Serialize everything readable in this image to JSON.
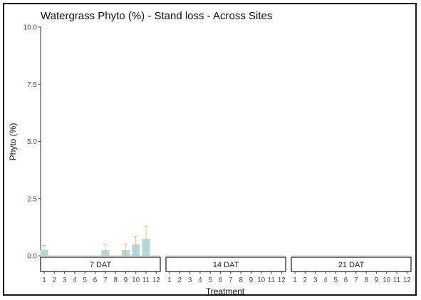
{
  "chart_data": {
    "type": "bar",
    "title": "Watergrass Phyto (%) - Stand loss - Across Sites",
    "xlabel": "Treatment",
    "ylabel": "Phyto (%)",
    "ylim": [
      0,
      10
    ],
    "yticks": [
      "0.0",
      "2.5",
      "5.0",
      "7.5",
      "10.0"
    ],
    "categories": [
      "1",
      "2",
      "3",
      "4",
      "5",
      "6",
      "7",
      "8",
      "9",
      "10",
      "11",
      "12"
    ],
    "bar_color": "#add8e6",
    "error_color": "#f0c060",
    "panels": [
      {
        "label": "7 DAT",
        "values": [
          0.25,
          0,
          0,
          0,
          0,
          0,
          0.25,
          0,
          0.25,
          0.5,
          0.75,
          0
        ],
        "error": [
          0.2,
          0,
          0,
          0,
          0,
          0,
          0.25,
          0,
          0.25,
          0.35,
          0.55,
          0
        ]
      },
      {
        "label": "14 DAT",
        "values": [
          0,
          0,
          0,
          0,
          0,
          0,
          0,
          0,
          0,
          0,
          0,
          0
        ],
        "error": [
          0,
          0,
          0,
          0,
          0,
          0,
          0,
          0,
          0,
          0,
          0,
          0
        ]
      },
      {
        "label": "21 DAT",
        "values": [
          0,
          0,
          0,
          0,
          0,
          0,
          0,
          0,
          0,
          0,
          0,
          0
        ],
        "error": [
          0,
          0,
          0,
          0,
          0,
          0,
          0,
          0,
          0,
          0,
          0,
          0
        ]
      }
    ]
  }
}
